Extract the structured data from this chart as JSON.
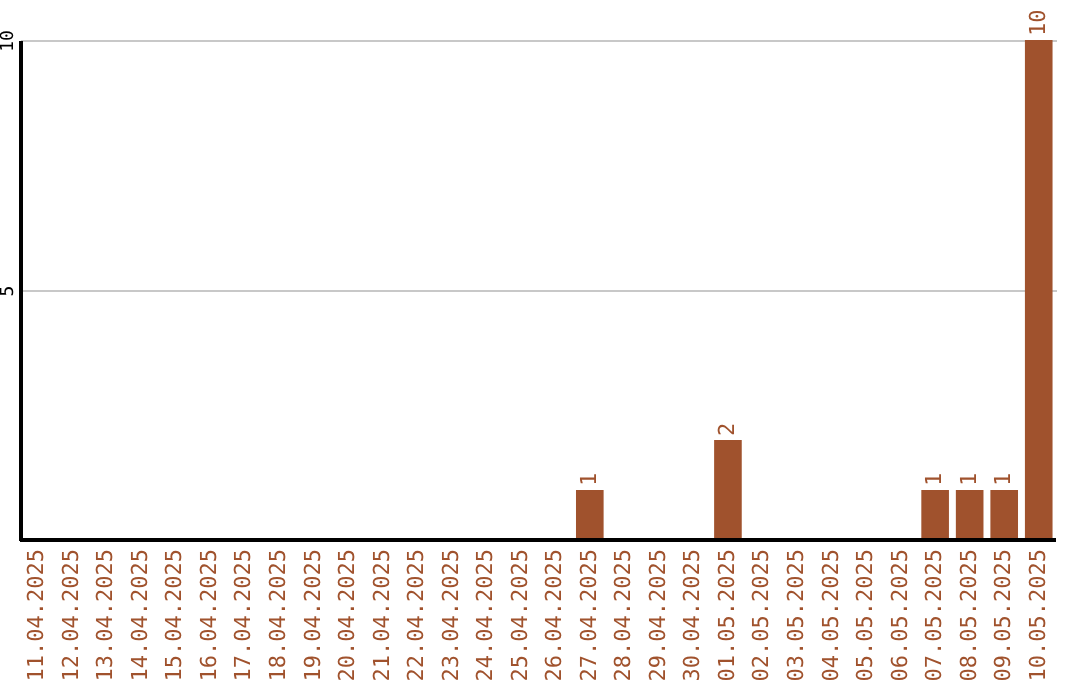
{
  "chart_data": {
    "type": "bar",
    "categories": [
      "11.04.2025",
      "12.04.2025",
      "13.04.2025",
      "14.04.2025",
      "15.04.2025",
      "16.04.2025",
      "17.04.2025",
      "18.04.2025",
      "19.04.2025",
      "20.04.2025",
      "21.04.2025",
      "22.04.2025",
      "23.04.2025",
      "24.04.2025",
      "25.04.2025",
      "26.04.2025",
      "27.04.2025",
      "28.04.2025",
      "29.04.2025",
      "30.04.2025",
      "01.05.2025",
      "02.05.2025",
      "03.05.2025",
      "04.05.2025",
      "05.05.2025",
      "06.05.2025",
      "07.05.2025",
      "08.05.2025",
      "09.05.2025",
      "10.05.2025"
    ],
    "values": [
      0,
      0,
      0,
      0,
      0,
      0,
      0,
      0,
      0,
      0,
      0,
      0,
      0,
      0,
      0,
      0,
      1,
      0,
      0,
      0,
      2,
      0,
      0,
      0,
      0,
      0,
      1,
      1,
      1,
      10
    ],
    "value_labels": [
      null,
      null,
      null,
      null,
      null,
      null,
      null,
      null,
      null,
      null,
      null,
      null,
      null,
      null,
      null,
      null,
      "1",
      null,
      null,
      null,
      "2",
      null,
      null,
      null,
      null,
      null,
      "1",
      "1",
      "1",
      "10"
    ],
    "color": "#a0522d",
    "ylim": [
      0,
      10
    ],
    "yticks": [
      5,
      10
    ],
    "grid": "y"
  }
}
